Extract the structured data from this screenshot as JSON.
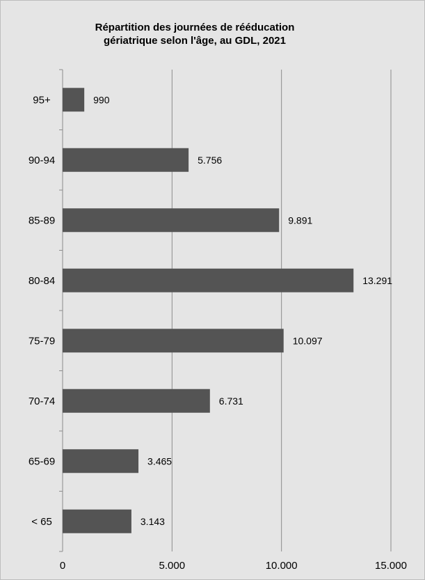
{
  "chart_data": {
    "type": "bar",
    "orientation": "horizontal",
    "title_lines": [
      "Répartition des journées de rééducation",
      "gériatrique selon l'âge, au GDL, 2021"
    ],
    "categories": [
      "95+",
      "90-94",
      "85-89",
      "80-84",
      "75-79",
      "70-74",
      "65-69",
      "< 65"
    ],
    "values": [
      990,
      5756,
      9891,
      13291,
      10097,
      6731,
      3465,
      3143
    ],
    "value_labels": [
      "990",
      "5.756",
      "9.891",
      "13.291",
      "10.097",
      "6.731",
      "3.465",
      "3.143"
    ],
    "xlim": [
      0,
      15000
    ],
    "x_ticks": [
      0,
      5000,
      10000,
      15000
    ],
    "x_tick_labels": [
      "0",
      "5.000",
      "10.000",
      "15.000"
    ],
    "grid": "vertical",
    "legend": "none",
    "colors": {
      "bar": "#545454",
      "background": "#e5e5e5",
      "gridline": "#8c8c8c",
      "axis": "#8c8c8c"
    }
  }
}
